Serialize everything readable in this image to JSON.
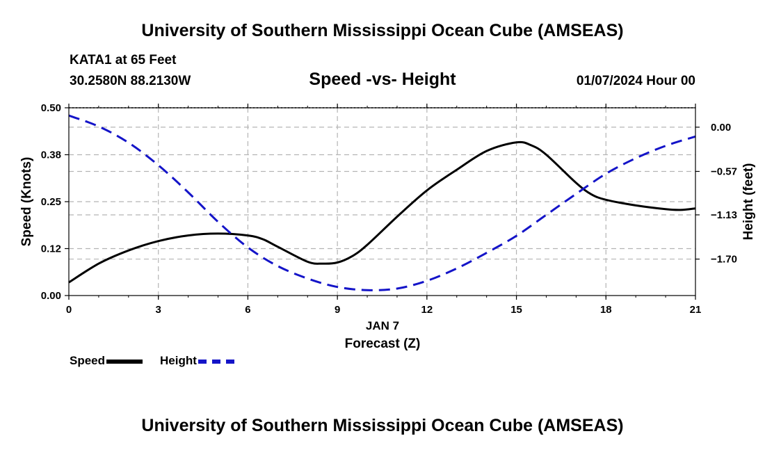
{
  "page": {
    "title_top": "University of Southern Mississippi Ocean Cube (AMSEAS)",
    "title_bottom": "University of Southern Mississippi Ocean Cube (AMSEAS)",
    "station": "KATA1 at 65 Feet",
    "coordinates": "30.2580N  88.2130W",
    "subtitle": "Speed -vs- Height",
    "datetime": "01/07/2024 Hour 00"
  },
  "legend": {
    "speed_label": "Speed",
    "height_label": "Height"
  },
  "colors": {
    "speed": "#000000",
    "height": "#1414c8",
    "grid": "#b4b4b4"
  },
  "chart_data": {
    "type": "line",
    "title": "Speed -vs- Height",
    "xlabel": "Forecast (Z)",
    "xlabel_date": "JAN 7",
    "ylabel_left": "Speed (Knots)",
    "ylabel_right": "Height (feet)",
    "xlim": [
      0,
      21
    ],
    "ylim_left": [
      0,
      0.5
    ],
    "ylim_right": [
      -2.17,
      0.25
    ],
    "x_ticks": [
      0,
      3,
      6,
      9,
      12,
      15,
      18,
      21
    ],
    "x_tick_labels": [
      "0",
      "3",
      "6",
      "9",
      "12",
      "15",
      "18",
      "21"
    ],
    "left_ticks": [
      0,
      0.125,
      0.25,
      0.375,
      0.5
    ],
    "left_tick_labels": [
      "0.00",
      "0.12",
      "0.25",
      "0.38",
      "0.50"
    ],
    "right_ticks": [
      0,
      -0.57,
      -1.13,
      -1.7
    ],
    "right_tick_labels": [
      "0.00",
      "−0.57",
      "−1.13",
      "−1.70"
    ],
    "grid": true,
    "legend_position": "bottom-left",
    "series": [
      {
        "name": "Speed",
        "axis": "left",
        "style": "solid",
        "x": [
          0,
          1,
          2,
          3,
          4,
          5,
          6,
          6.5,
          7,
          8,
          8.5,
          9,
          9.5,
          10,
          11,
          12,
          13,
          14,
          15,
          15.5,
          16,
          17,
          17.5,
          18,
          19,
          20,
          20.5,
          21
        ],
        "values": [
          0.035,
          0.085,
          0.12,
          0.145,
          0.16,
          0.165,
          0.16,
          0.15,
          0.13,
          0.09,
          0.085,
          0.088,
          0.105,
          0.135,
          0.21,
          0.28,
          0.335,
          0.385,
          0.408,
          0.4,
          0.375,
          0.3,
          0.27,
          0.255,
          0.24,
          0.23,
          0.228,
          0.232
        ]
      },
      {
        "name": "Height",
        "axis": "right",
        "style": "dashed",
        "x": [
          0,
          1,
          2,
          3,
          4,
          5,
          6,
          7,
          8,
          9,
          10,
          11,
          12,
          13,
          14,
          15,
          16,
          17,
          18,
          19,
          20,
          21
        ],
        "values": [
          0.15,
          0.01,
          -0.2,
          -0.49,
          -0.84,
          -1.22,
          -1.55,
          -1.79,
          -1.95,
          -2.06,
          -2.1,
          -2.08,
          -1.98,
          -1.82,
          -1.62,
          -1.4,
          -1.13,
          -0.86,
          -0.6,
          -0.4,
          -0.24,
          -0.12
        ]
      }
    ]
  }
}
